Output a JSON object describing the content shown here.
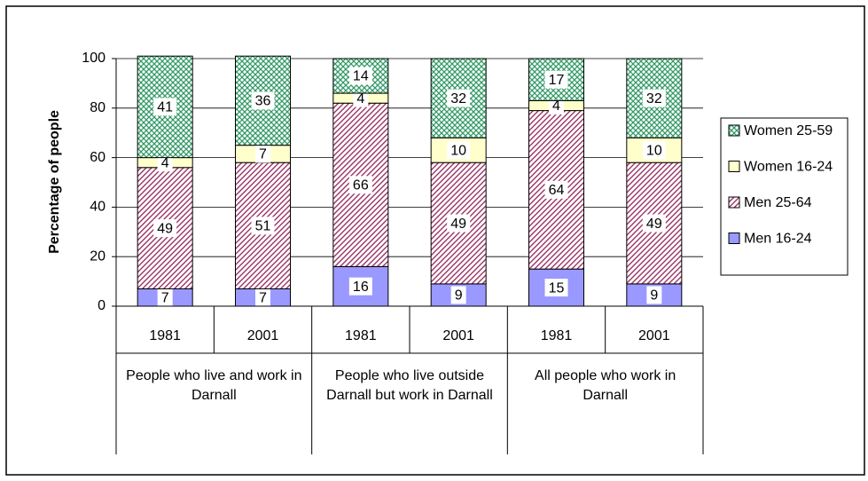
{
  "chart_data": {
    "type": "stacked_bar",
    "y_label": "Percentage of people",
    "categories": [
      "1981",
      "2001",
      "1981",
      "2001",
      "1981",
      "2001"
    ],
    "groups": [
      "People who live and work in Darnall",
      "People who live outside Darnall but work in Darnall",
      "All people who work in Darnall"
    ],
    "series": [
      {
        "name": "Men 16-24",
        "color": "#9999ff",
        "pattern": "solid",
        "values": [
          7,
          7,
          16,
          9,
          15,
          9
        ]
      },
      {
        "name": "Men 25-64",
        "color": "#993366",
        "pattern": "diagonal",
        "values": [
          49,
          51,
          66,
          49,
          64,
          49
        ]
      },
      {
        "name": "Women 16-24",
        "color": "#ffffcc",
        "pattern": "solid",
        "values": [
          4,
          7,
          4,
          10,
          4,
          10
        ]
      },
      {
        "name": "Women 25-59",
        "color": "#339966",
        "pattern": "crosshatch",
        "values": [
          41,
          36,
          14,
          32,
          17,
          32
        ]
      }
    ],
    "ylim": [
      0,
      100
    ],
    "yticks": [
      0,
      20,
      40,
      60,
      80,
      100
    ],
    "grid": true,
    "legend": "right"
  }
}
